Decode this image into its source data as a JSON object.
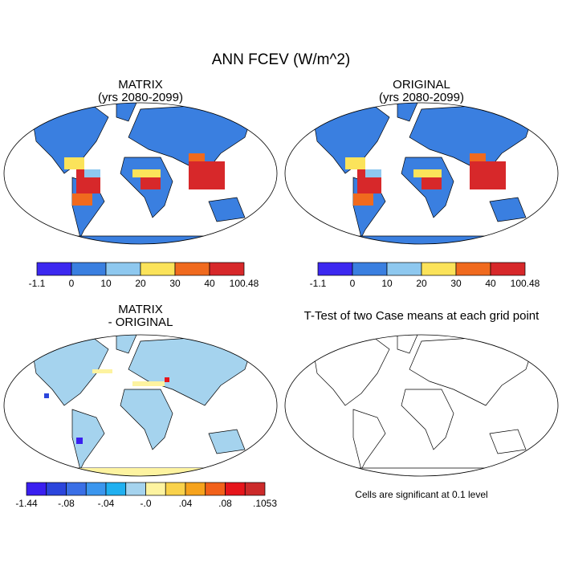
{
  "title": "ANN FCEV (W/m^2)",
  "panels": [
    {
      "title": "MATRIX",
      "subtitle": "(yrs 2080-2099)",
      "colorbar": {
        "labels": [
          "-1.1",
          "0",
          "10",
          "20",
          "30",
          "40",
          "100.48"
        ],
        "colors": [
          "#3c28f0",
          "#3a7fe0",
          "#8ec8ef",
          "#fbe35a",
          "#f06a1e",
          "#d7282a"
        ]
      }
    },
    {
      "title": "ORIGINAL",
      "subtitle": "(yrs 2080-2099)",
      "colorbar": {
        "labels": [
          "-1.1",
          "0",
          "10",
          "20",
          "30",
          "40",
          "100.48"
        ],
        "colors": [
          "#3c28f0",
          "#3a7fe0",
          "#8ec8ef",
          "#fbe35a",
          "#f06a1e",
          "#d7282a"
        ]
      }
    },
    {
      "title": "MATRIX",
      "subtitle": "- ORIGINAL",
      "colorbar": {
        "labels": [
          "-1.44",
          "-.08",
          "-.04",
          "-.0",
          ".04",
          ".08",
          ".1053"
        ],
        "colors": [
          "#3a1ff0",
          "#2b45dc",
          "#3a6fe6",
          "#3b96ee",
          "#20b0f0",
          "#a5d3ee",
          "#fdf3a0",
          "#f9d24b",
          "#f6a31d",
          "#f2611a",
          "#e6151b",
          "#cc2a2a"
        ]
      }
    },
    {
      "title": "T-Test of two Case means at each grid point",
      "note": "Cells are significant at 0.1 level"
    }
  ]
}
